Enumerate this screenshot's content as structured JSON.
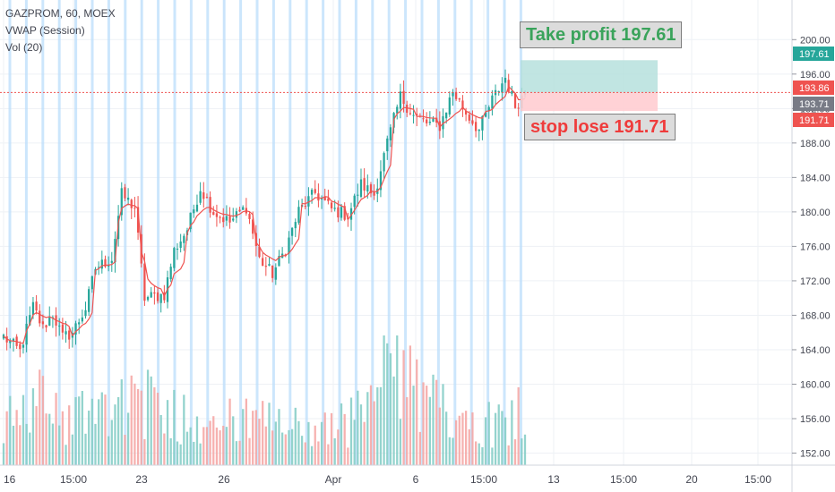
{
  "legend": {
    "line1": "GAZPROM, 60, MOEX",
    "line2": "VWAP (Session)",
    "line3": "Vol (20)"
  },
  "take_profit_label": "Take profit 197.61",
  "stop_loss_label": "stop lose 191.71",
  "colors": {
    "up": "#26a69a",
    "down": "#ef5350",
    "vwap": "#ef5350",
    "session_line": "#bbdefb",
    "profit_zone": "#b2dfdb",
    "loss_zone": "#ffcdd2",
    "last_price_line": "#ef5350",
    "axis_text": "#434651"
  },
  "chart_data": {
    "type": "candlestick",
    "symbol": "GAZPROM",
    "interval": "60",
    "exchange": "MOEX",
    "ylim": [
      150.6,
      204.6
    ],
    "y_ticks": [
      "152.00",
      "156.00",
      "160.00",
      "164.00",
      "168.00",
      "172.00",
      "176.00",
      "180.00",
      "184.00",
      "188.00",
      "192.00",
      "196.00",
      "200.00"
    ],
    "x_tick_labels": [
      "16",
      "15:00",
      "23",
      "26",
      "Apr",
      "6",
      "15:00",
      "13",
      "15:00",
      "20",
      "15:00"
    ],
    "price_markers": [
      {
        "label": "197.61",
        "value": 197.61,
        "type": "take-profit"
      },
      {
        "label": "193.86",
        "value": 193.86,
        "type": "last-price"
      },
      {
        "label": "193.71",
        "value": 193.71,
        "type": "vwap"
      },
      {
        "label": "191.71",
        "value": 191.71,
        "type": "stop-loss"
      }
    ],
    "entry_price": 193.86,
    "take_profit": 197.61,
    "stop_loss": 191.71,
    "candle_count": 160,
    "close_waypoints": [
      {
        "i": 0,
        "close": 165.5
      },
      {
        "i": 5,
        "close": 163.8
      },
      {
        "i": 9,
        "close": 169.0
      },
      {
        "i": 12,
        "close": 166.5
      },
      {
        "i": 15,
        "close": 168.2
      },
      {
        "i": 18,
        "close": 165.4
      },
      {
        "i": 21,
        "close": 166.0
      },
      {
        "i": 25,
        "close": 168.8
      },
      {
        "i": 28,
        "close": 173.5
      },
      {
        "i": 33,
        "close": 174.6
      },
      {
        "i": 36,
        "close": 182.0
      },
      {
        "i": 40,
        "close": 180.5
      },
      {
        "i": 43,
        "close": 170.0
      },
      {
        "i": 49,
        "close": 170.4
      },
      {
        "i": 52,
        "close": 175.5
      },
      {
        "i": 56,
        "close": 178.0
      },
      {
        "i": 60,
        "close": 182.8
      },
      {
        "i": 64,
        "close": 180.0
      },
      {
        "i": 69,
        "close": 178.8
      },
      {
        "i": 74,
        "close": 180.6
      },
      {
        "i": 78,
        "close": 174.5
      },
      {
        "i": 82,
        "close": 172.8
      },
      {
        "i": 86,
        "close": 175.7
      },
      {
        "i": 90,
        "close": 180.1
      },
      {
        "i": 95,
        "close": 182.2
      },
      {
        "i": 100,
        "close": 180.3
      },
      {
        "i": 105,
        "close": 179.6
      },
      {
        "i": 109,
        "close": 183.2
      },
      {
        "i": 113,
        "close": 182.0
      },
      {
        "i": 117,
        "close": 188.0
      },
      {
        "i": 121,
        "close": 193.4
      },
      {
        "i": 125,
        "close": 191.2
      },
      {
        "i": 129,
        "close": 190.3
      },
      {
        "i": 133,
        "close": 190.0
      },
      {
        "i": 137,
        "close": 194.0
      },
      {
        "i": 141,
        "close": 191.5
      },
      {
        "i": 145,
        "close": 189.5
      },
      {
        "i": 149,
        "close": 193.0
      },
      {
        "i": 153,
        "close": 195.6
      },
      {
        "i": 156,
        "close": 192.3
      },
      {
        "i": 159,
        "close": 193.86
      }
    ],
    "volume_waypoints": [
      {
        "i": 0,
        "v": 0.35
      },
      {
        "i": 10,
        "v": 0.55
      },
      {
        "i": 20,
        "v": 0.4
      },
      {
        "i": 35,
        "v": 0.6
      },
      {
        "i": 45,
        "v": 0.5
      },
      {
        "i": 60,
        "v": 0.4
      },
      {
        "i": 80,
        "v": 0.35
      },
      {
        "i": 100,
        "v": 0.3
      },
      {
        "i": 110,
        "v": 0.45
      },
      {
        "i": 118,
        "v": 0.85
      },
      {
        "i": 130,
        "v": 0.5
      },
      {
        "i": 150,
        "v": 0.35
      },
      {
        "i": 159,
        "v": 0.5
      }
    ]
  }
}
